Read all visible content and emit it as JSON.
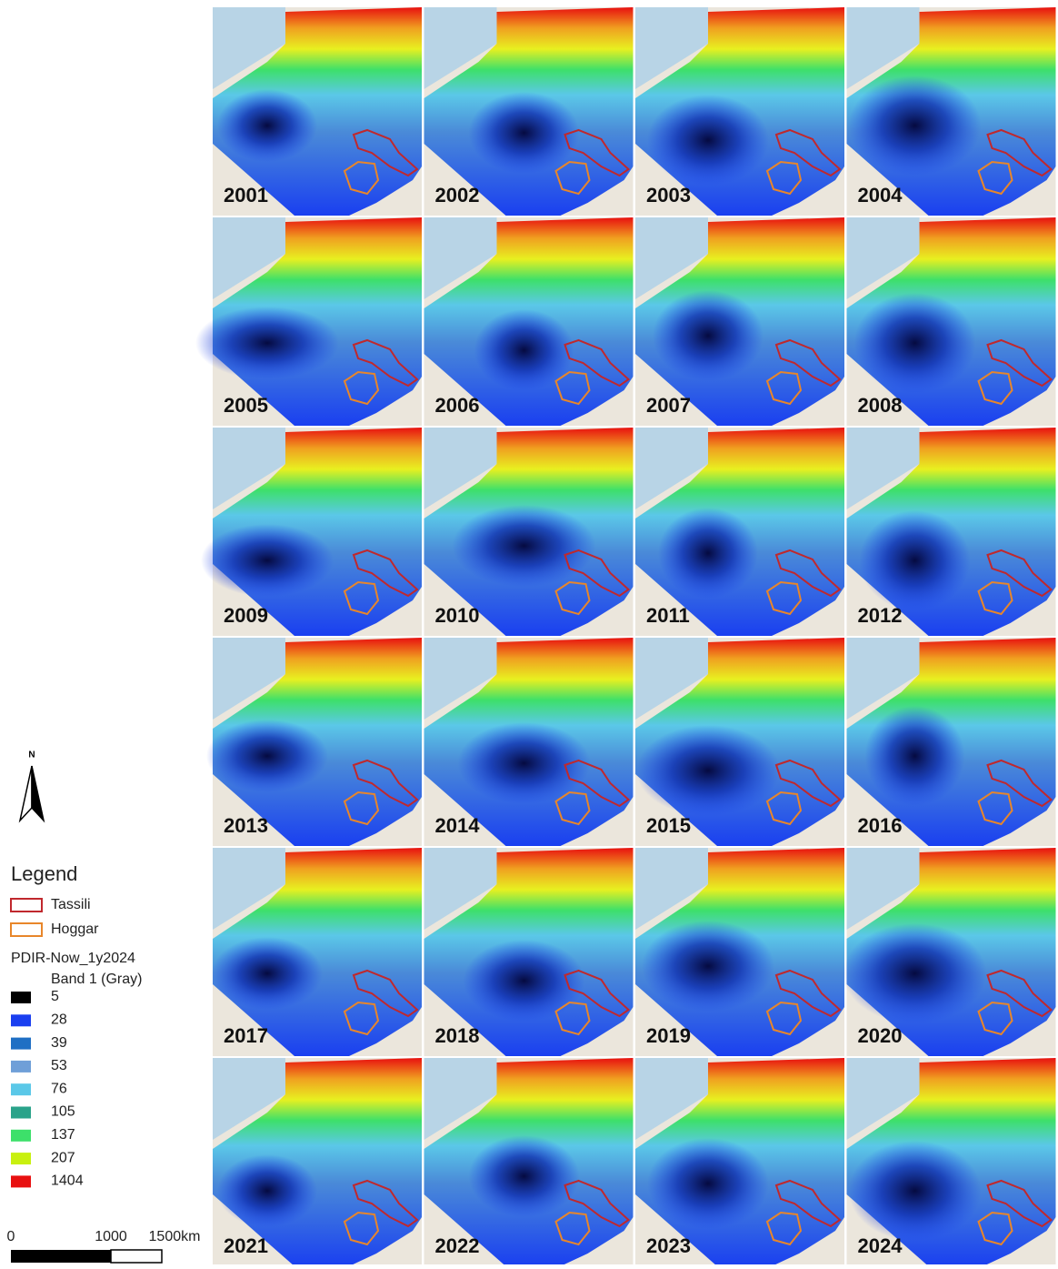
{
  "years": [
    "2001",
    "2002",
    "2003",
    "2004",
    "2005",
    "2006",
    "2007",
    "2008",
    "2009",
    "2010",
    "2011",
    "2012",
    "2013",
    "2014",
    "2015",
    "2016",
    "2017",
    "2018",
    "2019",
    "2020",
    "2021",
    "2022",
    "2023",
    "2024"
  ],
  "north": "N",
  "legend": {
    "title": "Legend",
    "areas": [
      {
        "label": "Tassili",
        "color": "#c0282d"
      },
      {
        "label": "Hoggar",
        "color": "#e8862a"
      }
    ],
    "layer": "PDIR-Now_1y2024",
    "band": "Band 1 (Gray)",
    "classes": [
      {
        "value": 5,
        "color": "#000000"
      },
      {
        "value": 28,
        "color": "#1a3ff0"
      },
      {
        "value": 39,
        "color": "#1f6fc4"
      },
      {
        "value": 53,
        "color": "#6f9fd8"
      },
      {
        "value": 76,
        "color": "#5bc8e8"
      },
      {
        "value": 105,
        "color": "#2aa38a"
      },
      {
        "value": 137,
        "color": "#3de06a"
      },
      {
        "value": 207,
        "color": "#c8f010"
      },
      {
        "value": 1404,
        "color": "#e81010"
      }
    ]
  },
  "scale_bar": [
    "0",
    "1000",
    "1500km"
  ]
}
